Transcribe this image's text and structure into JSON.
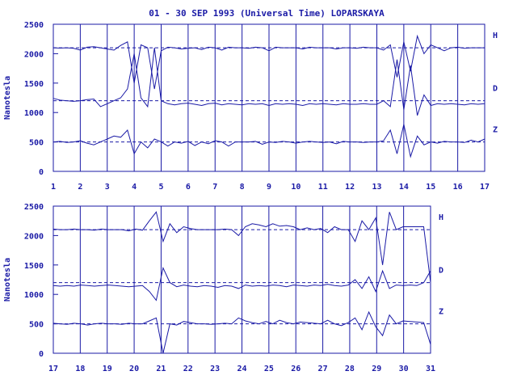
{
  "title": "01 - 30 SEP 1993 (Universal Time) LOPARSKAYA",
  "colors": {
    "trace": "#1a1aa6",
    "axis": "#1a1aa6",
    "grid": "#1a1aa6",
    "baseline": "#1a1aa6"
  },
  "chart_data": [
    {
      "type": "line",
      "ylabel": "Nanotesla",
      "ylim": [
        0,
        2500
      ],
      "yticks": [
        "0",
        "500",
        "1000",
        "1500",
        "2000",
        "2500"
      ],
      "xlim": [
        1,
        17
      ],
      "xticks": [
        "1",
        "2",
        "3",
        "4",
        "5",
        "6",
        "7",
        "8",
        "9",
        "10",
        "11",
        "12",
        "13",
        "14",
        "15",
        "16",
        "17"
      ],
      "grid": "vertical",
      "legend": "right",
      "series": [
        {
          "name": "H",
          "baseline": 2100,
          "values": [
            2100,
            2095,
            2100,
            2090,
            2060,
            2110,
            2120,
            2100,
            2080,
            2060,
            2140,
            2200,
            1500,
            2150,
            2100,
            1400,
            2050,
            2110,
            2100,
            2080,
            2090,
            2100,
            2070,
            2110,
            2100,
            2060,
            2110,
            2100,
            2100,
            2090,
            2110,
            2100,
            2050,
            2110,
            2100,
            2100,
            2100,
            2080,
            2110,
            2100,
            2100,
            2100,
            2080,
            2100,
            2100,
            2090,
            2110,
            2100,
            2100,
            2060,
            2150,
            1600,
            2200,
            1700,
            2300,
            2000,
            2150,
            2100,
            2050,
            2100,
            2110,
            2090,
            2100,
            2100,
            2100
          ]
        },
        {
          "name": "D",
          "baseline": 1200,
          "values": [
            1240,
            1210,
            1200,
            1190,
            1200,
            1220,
            1230,
            1100,
            1150,
            1200,
            1250,
            1400,
            2000,
            1250,
            1100,
            2100,
            1200,
            1150,
            1130,
            1150,
            1160,
            1140,
            1120,
            1150,
            1160,
            1130,
            1150,
            1140,
            1130,
            1150,
            1140,
            1150,
            1120,
            1150,
            1140,
            1150,
            1140,
            1120,
            1150,
            1140,
            1150,
            1140,
            1130,
            1150,
            1140,
            1140,
            1150,
            1140,
            1140,
            1200,
            1100,
            1900,
            1050,
            1800,
            950,
            1300,
            1120,
            1150,
            1140,
            1150,
            1140,
            1130,
            1150,
            1140,
            1150
          ]
        },
        {
          "name": "Z",
          "baseline": 500,
          "values": [
            500,
            510,
            490,
            500,
            520,
            480,
            450,
            500,
            550,
            600,
            580,
            700,
            300,
            500,
            400,
            550,
            500,
            430,
            500,
            480,
            510,
            440,
            500,
            470,
            520,
            500,
            430,
            500,
            500,
            500,
            510,
            460,
            500,
            490,
            510,
            500,
            480,
            500,
            510,
            500,
            490,
            500,
            470,
            510,
            500,
            500,
            490,
            500,
            500,
            520,
            700,
            300,
            800,
            250,
            600,
            450,
            500,
            480,
            510,
            500,
            500,
            490,
            530,
            500,
            550
          ]
        }
      ]
    },
    {
      "type": "line",
      "ylabel": "Nanotesla",
      "ylim": [
        0,
        2500
      ],
      "yticks": [
        "0",
        "500",
        "1000",
        "1500",
        "2000",
        "2500"
      ],
      "xlim": [
        17,
        31
      ],
      "xticks": [
        "17",
        "18",
        "19",
        "20",
        "21",
        "22",
        "23",
        "24",
        "25",
        "26",
        "27",
        "28",
        "29",
        "30",
        "31"
      ],
      "grid": "vertical",
      "legend": "right",
      "series": [
        {
          "name": "H",
          "baseline": 2100,
          "values": [
            2110,
            2100,
            2100,
            2110,
            2100,
            2100,
            2090,
            2110,
            2100,
            2100,
            2100,
            2080,
            2110,
            2090,
            2250,
            2400,
            1900,
            2200,
            2050,
            2150,
            2120,
            2100,
            2100,
            2100,
            2100,
            2110,
            2100,
            2000,
            2150,
            2200,
            2180,
            2150,
            2200,
            2160,
            2170,
            2150,
            2100,
            2130,
            2100,
            2120,
            2050,
            2150,
            2100,
            2100,
            1900,
            2250,
            2100,
            2300,
            1500,
            2400,
            2100,
            2150,
            2150,
            2150,
            2150,
            1200
          ]
        },
        {
          "name": "D",
          "baseline": 1200,
          "values": [
            1150,
            1140,
            1150,
            1140,
            1160,
            1150,
            1140,
            1150,
            1160,
            1150,
            1140,
            1130,
            1140,
            1150,
            1050,
            900,
            1450,
            1200,
            1130,
            1160,
            1140,
            1130,
            1150,
            1140,
            1120,
            1150,
            1140,
            1100,
            1160,
            1140,
            1150,
            1140,
            1160,
            1150,
            1130,
            1160,
            1150,
            1140,
            1160,
            1150,
            1170,
            1150,
            1140,
            1160,
            1250,
            1100,
            1300,
            1050,
            1400,
            1100,
            1160,
            1150,
            1160,
            1150,
            1200,
            1400
          ]
        },
        {
          "name": "Z",
          "baseline": 500,
          "values": [
            510,
            500,
            490,
            510,
            500,
            480,
            500,
            510,
            500,
            500,
            490,
            510,
            500,
            500,
            550,
            600,
            0,
            500,
            480,
            540,
            520,
            500,
            500,
            490,
            500,
            510,
            500,
            600,
            550,
            520,
            500,
            540,
            500,
            560,
            520,
            500,
            530,
            520,
            510,
            500,
            560,
            500,
            470,
            520,
            600,
            400,
            700,
            450,
            300,
            650,
            500,
            550,
            540,
            530,
            520,
            150
          ]
        }
      ]
    }
  ]
}
